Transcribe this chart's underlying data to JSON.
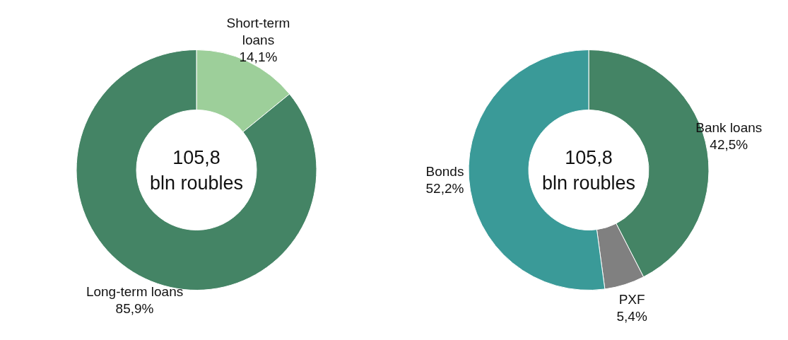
{
  "chart_data": [
    {
      "type": "donut",
      "categories": [
        "Short-term\nloans",
        "Long-term loans"
      ],
      "values": [
        14.1,
        85.9
      ],
      "value_labels": [
        "14,1%",
        "85,9%"
      ],
      "colors": [
        "#9dcf9a",
        "#448465"
      ],
      "annotations": [
        "105,8\nbln roubles"
      ],
      "legend": false
    },
    {
      "type": "donut",
      "categories": [
        "Bank loans",
        "PXF",
        "Bonds"
      ],
      "values": [
        42.5,
        5.4,
        52.2
      ],
      "value_labels": [
        "42,5%",
        "5,4%",
        "52,2%"
      ],
      "colors": [
        "#448465",
        "#808080",
        "#3a9a98"
      ],
      "annotations": [
        "105,8\nbln roubles"
      ],
      "legend": false
    }
  ]
}
